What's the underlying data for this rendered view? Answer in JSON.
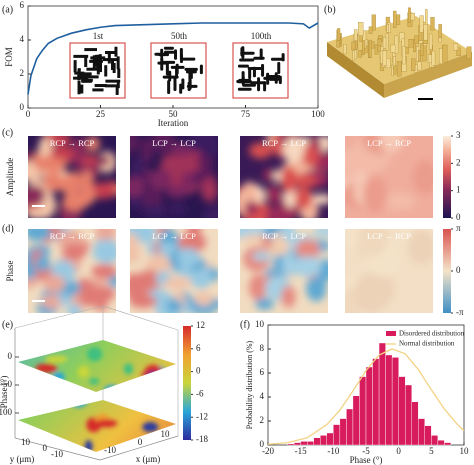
{
  "panel_labels": [
    "(a)",
    "(b)",
    "(c)",
    "(d)",
    "(e)",
    "(f)"
  ],
  "chart_data": [
    {
      "type": "line",
      "x": [
        0,
        1,
        2,
        3,
        5,
        7,
        10,
        15,
        20,
        25,
        30,
        40,
        50,
        60,
        70,
        80,
        90,
        95,
        97,
        100
      ],
      "values": [
        0.8,
        1.9,
        2.4,
        2.9,
        3.4,
        3.8,
        4.1,
        4.4,
        4.6,
        4.75,
        4.85,
        4.9,
        4.95,
        5.0,
        5.0,
        5.0,
        5.0,
        4.95,
        4.7,
        5.0
      ],
      "color": "#1f5f9f",
      "xlabel": "Iteration",
      "ylabel": "FOM",
      "xlim": [
        0,
        100
      ],
      "ylim": [
        0,
        6
      ],
      "xticks": [
        0,
        25,
        50,
        75,
        100
      ],
      "yticks": [
        0,
        2,
        4,
        6
      ],
      "insets": [
        "1st",
        "50th",
        "100th"
      ]
    },
    {
      "type": "histogram",
      "bins": [
        -17,
        -16,
        -15,
        -14,
        -13,
        -12,
        -11,
        -10,
        -9,
        -8,
        -7,
        -6,
        -5,
        -4,
        -3,
        -2,
        -1,
        0,
        1,
        2,
        3,
        4,
        5,
        6,
        7,
        8
      ],
      "series": [
        {
          "name": "Disordered distribution",
          "color": "#d81b5c",
          "values": [
            0.1,
            0.2,
            0.3,
            0.3,
            0.6,
            0.8,
            1.0,
            1.7,
            2.2,
            3.0,
            4.1,
            5.7,
            6.5,
            7.2,
            8.5,
            7.5,
            7.3,
            5.7,
            5.0,
            3.6,
            2.2,
            1.6,
            0.8,
            0.4,
            0.2
          ]
        }
      ],
      "curve": {
        "name": "Normal distribution",
        "color": "#f2d384",
        "x": [
          -20,
          -17,
          -14,
          -11,
          -9,
          -7,
          -5,
          -3,
          -1,
          1,
          3,
          5,
          7,
          9,
          10
        ],
        "values": [
          0.05,
          0.2,
          0.6,
          1.7,
          2.9,
          4.5,
          6.2,
          7.5,
          8.0,
          7.6,
          6.3,
          4.6,
          3.0,
          1.7,
          1.2
        ]
      },
      "xlabel": "Phase (°)",
      "ylabel": "Probability distribution (%)",
      "xlim": [
        -20,
        10
      ],
      "ylim": [
        0,
        10
      ],
      "xticks": [
        -20,
        -15,
        -10,
        -5,
        0,
        5,
        10
      ],
      "yticks": [
        0,
        2,
        4,
        6,
        8,
        10
      ]
    }
  ],
  "amplitude": {
    "ylabel": "Amplitude",
    "titles": [
      "RCP → RCP",
      "LCP → LCP",
      "RCP → LCP",
      "LCP → RCP"
    ],
    "colorbar": {
      "lim": [
        0,
        3
      ],
      "ticks": [
        0,
        1,
        2,
        3
      ]
    }
  },
  "phase": {
    "ylabel": "Phase",
    "titles": [
      "RCP → RCP",
      "LCP → LCP",
      "RCP → LCP",
      "LCP → RCP"
    ],
    "colorbar": {
      "lim": [
        -3.14159,
        3.14159
      ],
      "ticks": [
        {
          "value": 3.14159,
          "label": "π"
        },
        0,
        {
          "value": -3.14159,
          "label": "-π"
        }
      ]
    }
  },
  "surface": {
    "zlabel": "Phase (°)",
    "xlabel": "x (μm)",
    "ylabel": "y (μm)",
    "zticks": [
      0,
      -50,
      -100
    ],
    "xticks": [
      -10,
      0,
      10
    ],
    "yticks": [
      10,
      0,
      -10
    ],
    "colorbar": {
      "lim": [
        -18,
        12
      ],
      "ticks": [
        12,
        6,
        0,
        -6,
        -12,
        -18
      ]
    }
  }
}
